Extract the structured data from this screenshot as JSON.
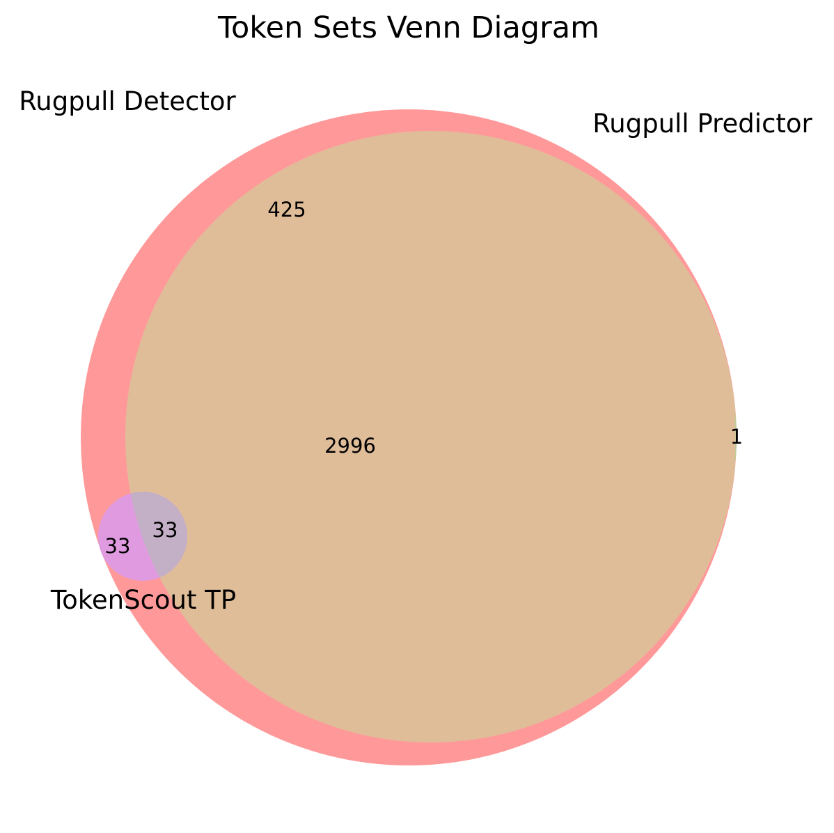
{
  "title": "Token Sets Venn Diagram",
  "sets": [
    {
      "id": "detector",
      "name": "Rugpull Detector"
    },
    {
      "id": "predictor",
      "name": "Rugpull Predictor"
    },
    {
      "id": "tokenscout",
      "name": "TokenScout TP"
    }
  ],
  "regions": {
    "detector_only": "425",
    "detector_and_predictor": "2996",
    "predictor_only": "1",
    "tokenscout_only": "33",
    "tokenscout_and_detector_and_predictor": "33"
  },
  "colors": {
    "detector": "#ff9999",
    "detector_and_predictor": "#e0bd99",
    "predictor_only": "#b8cf9c",
    "tokenscout_only": "#e09ae0",
    "tokenscout_overlap": "#c4b0c6"
  }
}
